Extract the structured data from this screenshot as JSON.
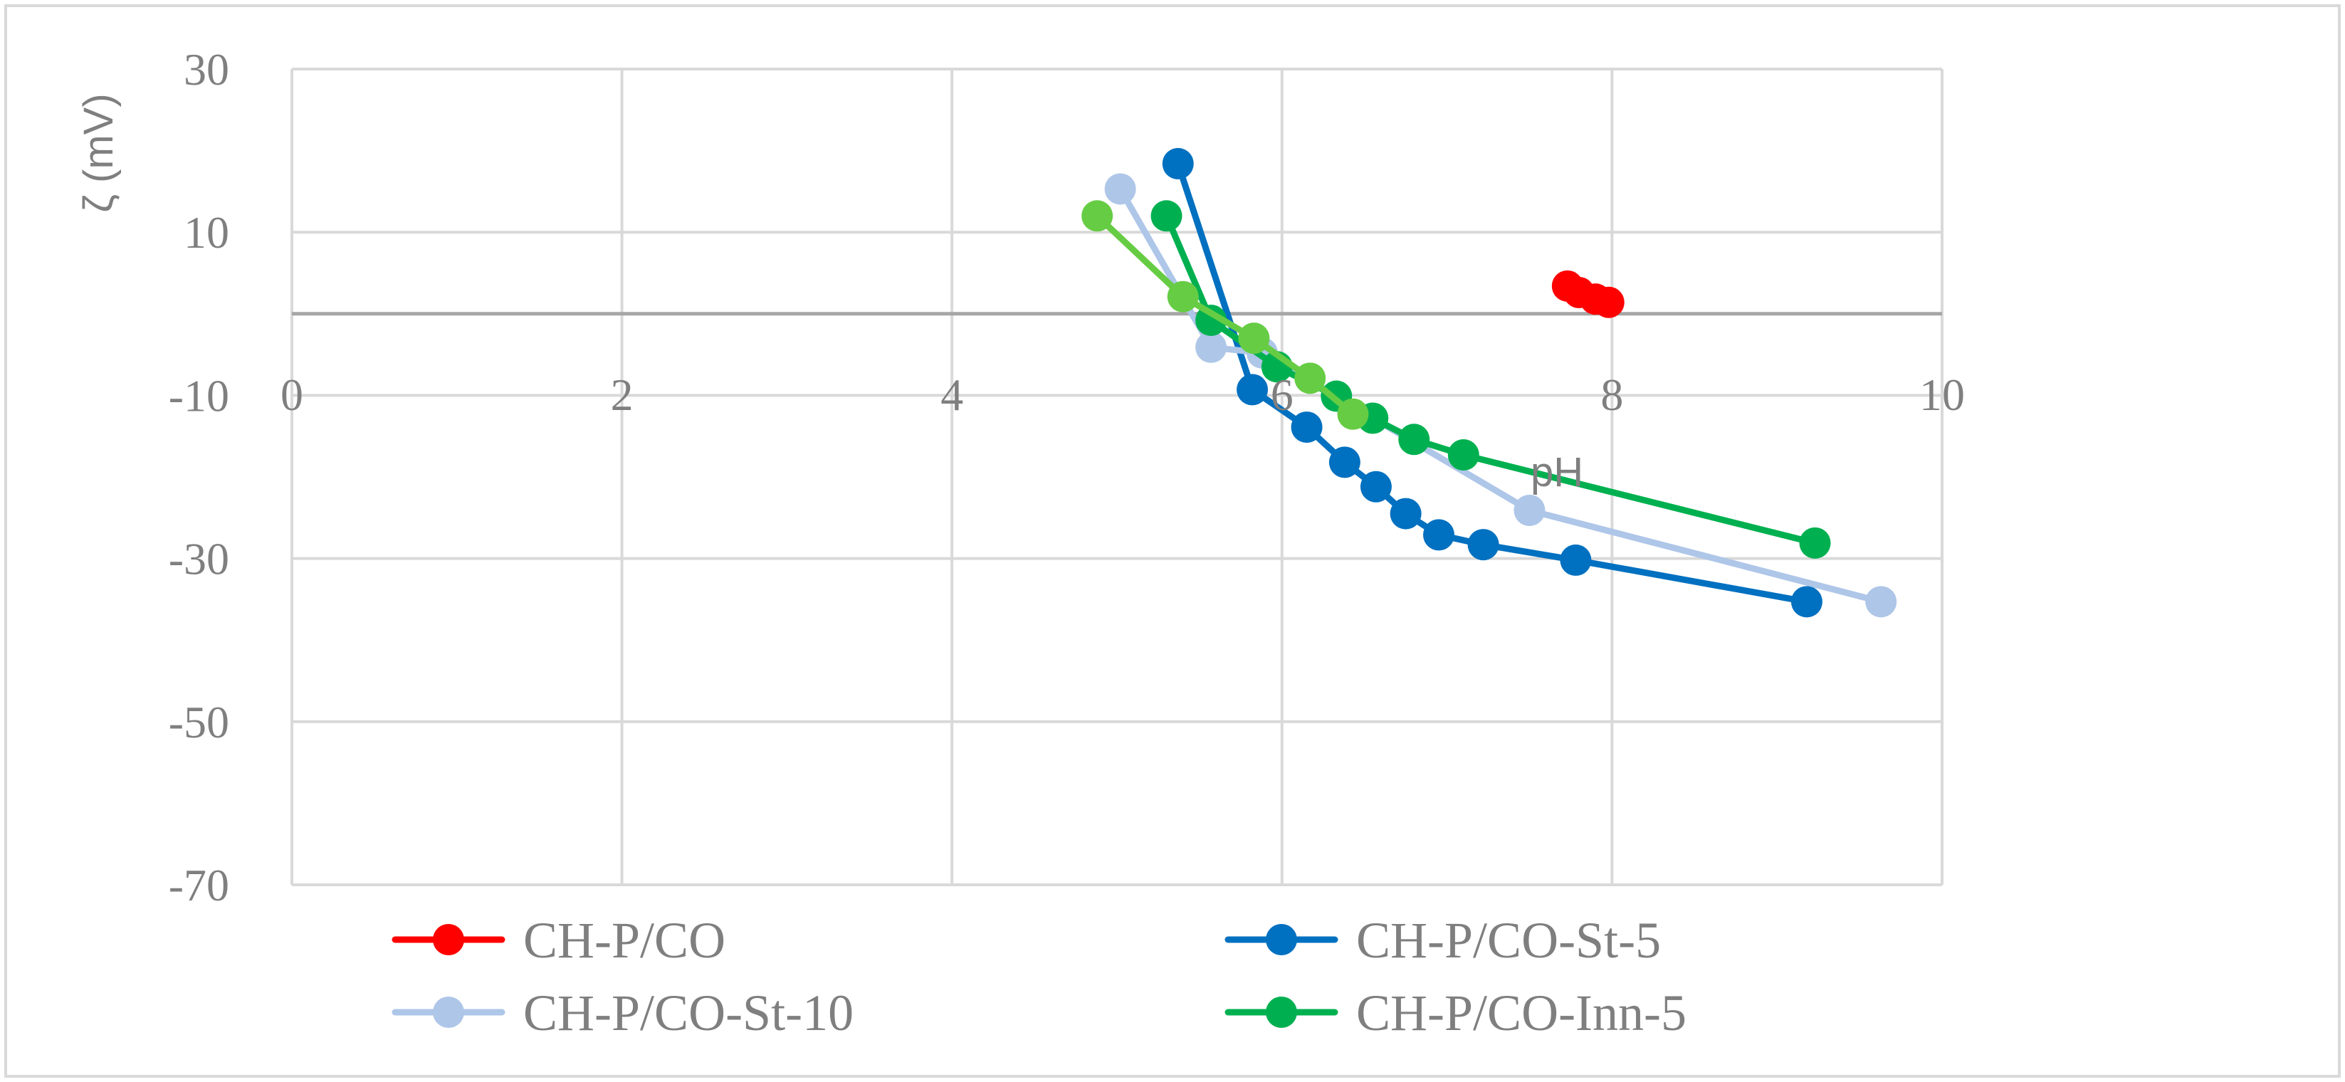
{
  "chart_data": {
    "type": "scatter",
    "xlabel": "pH",
    "ylabel": "ζ (mV)",
    "xlim": [
      0,
      10
    ],
    "ylim": [
      -70,
      30
    ],
    "xticks": [
      0,
      2,
      4,
      6,
      8,
      10
    ],
    "yticks": [
      30,
      10,
      -10,
      -30,
      -50,
      -70
    ],
    "x_tick_labels": [
      "0",
      "2",
      "4",
      "6",
      "8",
      "10"
    ],
    "y_tick_labels": [
      "30",
      "10",
      "-10",
      "-30",
      "-50",
      "-70"
    ],
    "grid": true,
    "legend_position": "bottom",
    "series": [
      {
        "name": "CH-P/CO",
        "color": "#ff0000",
        "points": [
          [
            7.73,
            3.4
          ],
          [
            7.8,
            2.6
          ],
          [
            7.9,
            1.8
          ],
          [
            7.98,
            1.4
          ]
        ]
      },
      {
        "name": "CH-P/CO-St-5",
        "color": "#0070c0",
        "points": [
          [
            5.37,
            18.4
          ],
          [
            5.82,
            -9.3
          ],
          [
            6.15,
            -13.9
          ],
          [
            6.38,
            -18.2
          ],
          [
            6.57,
            -21.2
          ],
          [
            6.75,
            -24.5
          ],
          [
            6.95,
            -27.1
          ],
          [
            7.22,
            -28.3
          ],
          [
            7.78,
            -30.2
          ],
          [
            9.18,
            -35.3
          ]
        ]
      },
      {
        "name": "CH-P/CO-St-10",
        "color": "#aec6e8",
        "points": [
          [
            5.02,
            15.3
          ],
          [
            5.57,
            -4.1
          ],
          [
            5.88,
            -4.8
          ],
          [
            7.5,
            -24.1
          ],
          [
            9.63,
            -35.3
          ]
        ]
      },
      {
        "name": "CH-P/CO-Inn-5",
        "color": "#00b050",
        "points": [
          [
            5.3,
            12.0
          ],
          [
            5.57,
            -0.8
          ],
          [
            5.97,
            -6.5
          ],
          [
            6.33,
            -10.1
          ],
          [
            6.55,
            -12.8
          ],
          [
            6.8,
            -15.4
          ],
          [
            7.1,
            -17.3
          ],
          [
            9.23,
            -28.1
          ]
        ]
      },
      {
        "name": "",
        "color": "#66cc44",
        "points": [
          [
            4.88,
            12.0
          ],
          [
            5.4,
            2.1
          ],
          [
            5.83,
            -3.0
          ],
          [
            6.17,
            -7.9
          ],
          [
            6.43,
            -12.3
          ]
        ]
      }
    ]
  }
}
